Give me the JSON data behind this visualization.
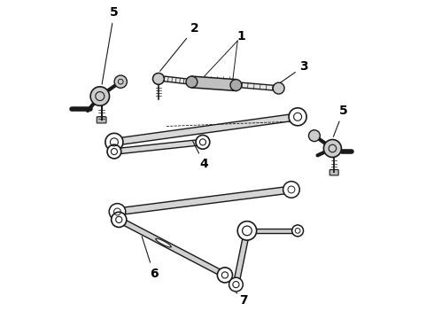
{
  "bg_color": "#ffffff",
  "line_color": "#1a1a1a",
  "label_color": "#000000",
  "label_fontsize": 10,
  "figsize": [
    4.9,
    3.6
  ],
  "dpi": 100
}
